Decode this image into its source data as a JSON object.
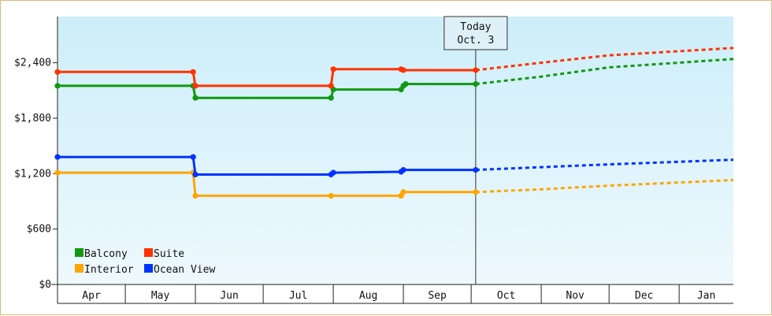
{
  "chart_data": {
    "type": "line",
    "title": "",
    "xlabel": "",
    "ylabel": "",
    "ylim": [
      0,
      2900
    ],
    "yticks": [
      0,
      600,
      1200,
      1800,
      2400
    ],
    "ytick_labels": [
      "$0",
      "$600",
      "$1,200",
      "$1,800",
      "$2,400"
    ],
    "months": [
      "Apr",
      "May",
      "Jun",
      "Jul",
      "Aug",
      "Sep",
      "Oct",
      "Nov",
      "Dec",
      "Jan"
    ],
    "x_range": [
      "2025-04-01",
      "2026-01-25"
    ],
    "grid": false,
    "legend_position": "bottom-left",
    "marker": {
      "line1": "Today",
      "line2": "Oct. 3",
      "date": "2025-10-03"
    },
    "series": [
      {
        "name": "Balcony",
        "color": "#119911",
        "observed": [
          [
            "2025-04-01",
            2150
          ],
          [
            "2025-05-31",
            2150
          ],
          [
            "2025-06-01",
            2020
          ],
          [
            "2025-07-31",
            2020
          ],
          [
            "2025-08-01",
            2110
          ],
          [
            "2025-08-31",
            2110
          ],
          [
            "2025-09-01",
            2150
          ],
          [
            "2025-09-02",
            2170
          ],
          [
            "2025-10-03",
            2170
          ]
        ],
        "forecast": [
          [
            "2025-10-03",
            2170
          ],
          [
            "2025-11-01",
            2250
          ],
          [
            "2025-12-01",
            2350
          ],
          [
            "2026-01-25",
            2440
          ]
        ]
      },
      {
        "name": "Suite",
        "color": "#ff3300",
        "observed": [
          [
            "2025-04-01",
            2300
          ],
          [
            "2025-05-31",
            2300
          ],
          [
            "2025-06-01",
            2150
          ],
          [
            "2025-07-31",
            2150
          ],
          [
            "2025-08-01",
            2330
          ],
          [
            "2025-08-31",
            2330
          ],
          [
            "2025-09-01",
            2320
          ],
          [
            "2025-10-03",
            2320
          ]
        ],
        "forecast": [
          [
            "2025-10-03",
            2320
          ],
          [
            "2025-11-01",
            2400
          ],
          [
            "2025-12-01",
            2480
          ],
          [
            "2026-01-25",
            2560
          ]
        ]
      },
      {
        "name": "Interior",
        "color": "#ffa500",
        "observed": [
          [
            "2025-04-01",
            1210
          ],
          [
            "2025-05-31",
            1210
          ],
          [
            "2025-06-01",
            960
          ],
          [
            "2025-07-31",
            960
          ],
          [
            "2025-08-31",
            960
          ],
          [
            "2025-09-01",
            1000
          ],
          [
            "2025-10-03",
            1000
          ]
        ],
        "forecast": [
          [
            "2025-10-03",
            1000
          ],
          [
            "2025-11-01",
            1030
          ],
          [
            "2025-12-01",
            1070
          ],
          [
            "2026-01-25",
            1130
          ]
        ]
      },
      {
        "name": "Ocean View",
        "color": "#0033ff",
        "observed": [
          [
            "2025-04-01",
            1380
          ],
          [
            "2025-05-31",
            1380
          ],
          [
            "2025-06-01",
            1190
          ],
          [
            "2025-07-31",
            1190
          ],
          [
            "2025-08-01",
            1210
          ],
          [
            "2025-08-31",
            1220
          ],
          [
            "2025-09-01",
            1240
          ],
          [
            "2025-10-03",
            1240
          ]
        ],
        "forecast": [
          [
            "2025-10-03",
            1240
          ],
          [
            "2025-11-01",
            1270
          ],
          [
            "2025-12-01",
            1300
          ],
          [
            "2026-01-25",
            1350
          ]
        ]
      }
    ]
  }
}
